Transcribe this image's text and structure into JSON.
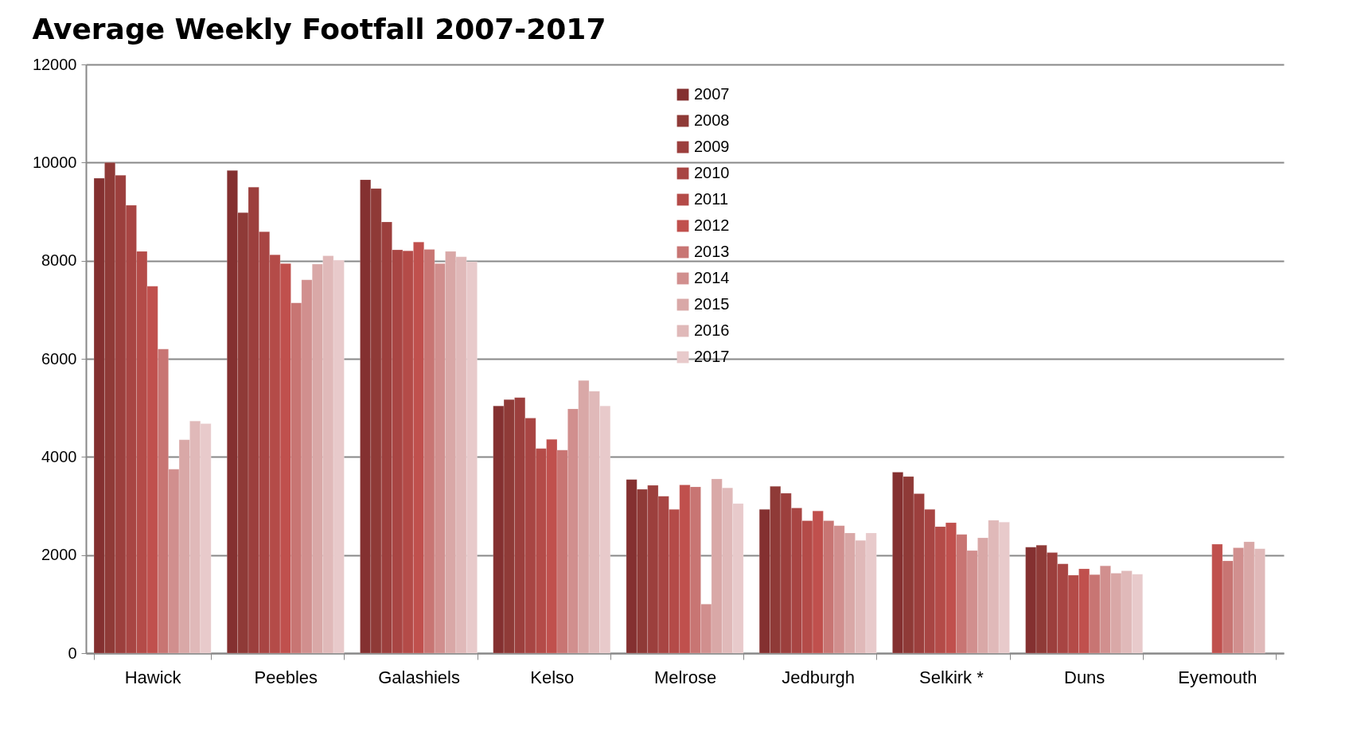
{
  "chart_data": {
    "type": "bar",
    "title": "Average Weekly Footfall 2007-2017",
    "categories": [
      "Hawick",
      "Peebles",
      "Galashiels",
      "Kelso",
      "Melrose",
      "Jedburgh",
      "Selkirk *",
      "Duns",
      "Eyemouth"
    ],
    "series": [
      {
        "name": "2007",
        "color": "#843030",
        "values": [
          9680,
          9840,
          9650,
          5040,
          3540,
          2930,
          3690,
          2160,
          null
        ]
      },
      {
        "name": "2008",
        "color": "#8f3a37",
        "values": [
          10000,
          8980,
          9470,
          5170,
          3340,
          3400,
          3600,
          2200,
          null
        ]
      },
      {
        "name": "2009",
        "color": "#9c3f3d",
        "values": [
          9740,
          9500,
          8790,
          5210,
          3420,
          3260,
          3250,
          2050,
          null
        ]
      },
      {
        "name": "2010",
        "color": "#a84543",
        "values": [
          9130,
          8590,
          8220,
          4790,
          3200,
          2960,
          2930,
          1820,
          null
        ]
      },
      {
        "name": "2011",
        "color": "#b44b48",
        "values": [
          8190,
          8120,
          8200,
          4170,
          2930,
          2700,
          2580,
          1590,
          null
        ]
      },
      {
        "name": "2012",
        "color": "#c0504d",
        "values": [
          7480,
          7940,
          8380,
          4360,
          3430,
          2900,
          2660,
          1720,
          2220
        ]
      },
      {
        "name": "2013",
        "color": "#c87573",
        "values": [
          6200,
          7140,
          8230,
          4140,
          3390,
          2700,
          2420,
          1600,
          1880
        ]
      },
      {
        "name": "2014",
        "color": "#d18f8e",
        "values": [
          3750,
          7610,
          7940,
          4980,
          1000,
          2600,
          2090,
          1780,
          2150
        ]
      },
      {
        "name": "2015",
        "color": "#d9a8a7",
        "values": [
          4350,
          7930,
          8190,
          5560,
          3550,
          2450,
          2350,
          1630,
          2270
        ]
      },
      {
        "name": "2016",
        "color": "#e0b9b9",
        "values": [
          4730,
          8100,
          8080,
          5340,
          3370,
          2300,
          2710,
          1680,
          2130
        ]
      },
      {
        "name": "2017",
        "color": "#e8cacb",
        "values": [
          4680,
          8010,
          7980,
          5040,
          3050,
          2450,
          2670,
          1610,
          null
        ]
      }
    ],
    "ylim": [
      0,
      12000
    ],
    "yticks": [
      0,
      2000,
      4000,
      6000,
      8000,
      10000,
      12000
    ],
    "grid": "y",
    "legend": "top"
  }
}
